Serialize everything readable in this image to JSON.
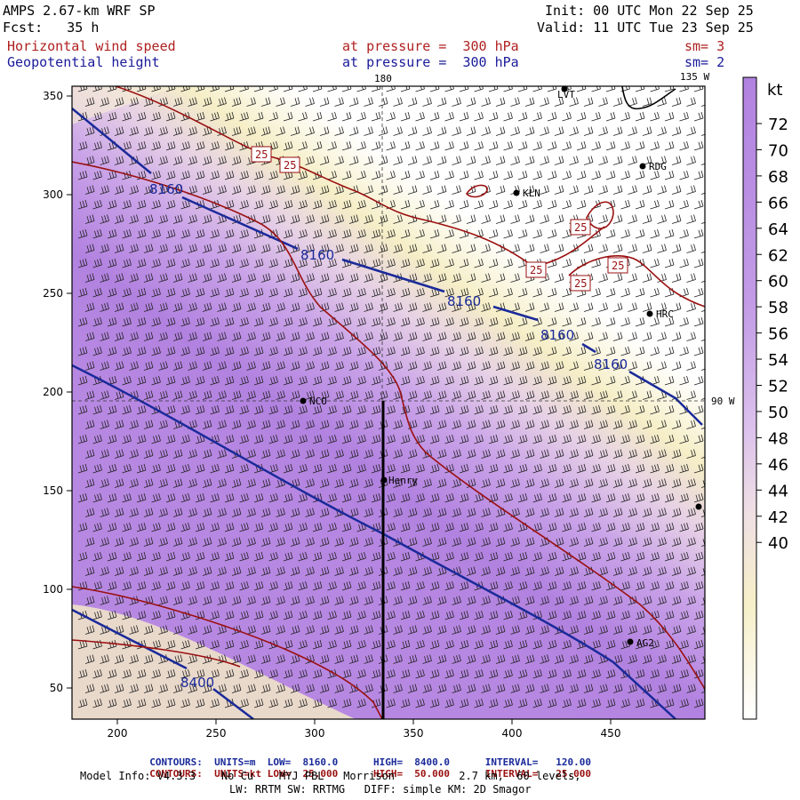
{
  "header": {
    "title": "AMPS 2.67-km WRF SP",
    "forecast": "Fcst:   35 h",
    "init": "Init: 00 UTC Mon 22 Sep 25",
    "valid": "Valid: 11 UTC Tue 23 Sep 25",
    "field1": {
      "name": "Horizontal wind speed",
      "level": "at pressure =  300 hPa",
      "smooth": "sm= 3"
    },
    "field2": {
      "name": "Geopotential height",
      "level": "at pressure =  300 hPa",
      "smooth": "sm= 2"
    }
  },
  "map": {
    "lon_labels": {
      "top_180": "180",
      "top_135w": "135 W",
      "right_90w": "90 W"
    },
    "x_ticks": [
      "200",
      "250",
      "300",
      "350",
      "400",
      "450"
    ],
    "y_ticks": [
      "50",
      "100",
      "150",
      "200",
      "250",
      "300",
      "350"
    ],
    "height_contour_labels": [
      "8160",
      "8160",
      "8160",
      "8160",
      "8160",
      "8400"
    ],
    "speed_contour_labels": [
      "25",
      "25",
      "25",
      "25",
      "25",
      "25"
    ],
    "stations": [
      {
        "name": "LVT"
      },
      {
        "name": "RDG"
      },
      {
        "name": "KLN"
      },
      {
        "name": "HRC"
      },
      {
        "name": "NCO"
      },
      {
        "name": "Henry"
      },
      {
        "name": "AG2"
      },
      {
        "name": ""
      }
    ],
    "colors": {
      "low": "#ffffff",
      "mid": "#f5eec8",
      "high": "#b282e0",
      "height_contour": "#1a2a9a",
      "speed_contour": "#9a1010"
    }
  },
  "colorbar": {
    "unit": "kt",
    "labels": [
      "72",
      "70",
      "68",
      "66",
      "64",
      "62",
      "60",
      "58",
      "56",
      "54",
      "52",
      "50",
      "48",
      "46",
      "44",
      "42",
      "40"
    ]
  },
  "footer": {
    "contours_height": {
      "label": "CONTOURS:",
      "units": "UNITS=m",
      "low": "LOW=  8160.0",
      "high": "HIGH=  8400.0",
      "interval": "INTERVAL=   120.00"
    },
    "contours_speed": {
      "label": "CONTOURS:",
      "units": "UNITS=kt",
      "low": "LOW=  25.000",
      "high": "HIGH=  50.000",
      "interval": "INTERVAL=   25.000"
    },
    "model_info": "Model Info: V4.3.3    No Cu    MYJ PBL   Morrison          2.7 km,  60 levels,",
    "physics": "LW: RRTM SW: RRTMG   DIFF: simple KM: 2D Smagor"
  }
}
